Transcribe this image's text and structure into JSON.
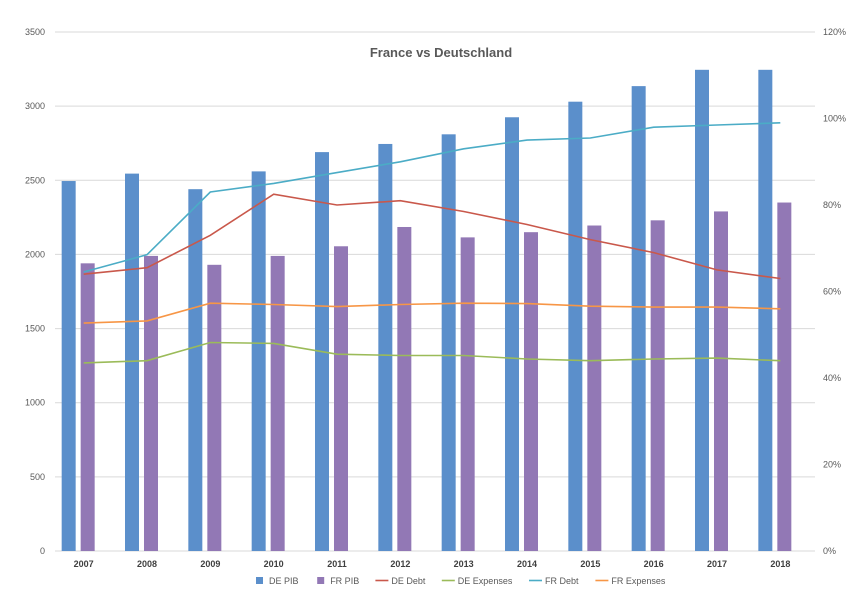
{
  "chart_data": {
    "type": "bar",
    "title": "France vs Deutschland",
    "categories": [
      "2007",
      "2008",
      "2009",
      "2010",
      "2011",
      "2012",
      "2013",
      "2014",
      "2015",
      "2016",
      "2017",
      "2018"
    ],
    "y_left": {
      "ylim": [
        0,
        3500
      ],
      "ticks": [
        "0",
        "500",
        "1000",
        "1500",
        "2000",
        "2500",
        "3000",
        "3500"
      ]
    },
    "y_right": {
      "ylim": [
        0,
        1.2
      ],
      "ticks": [
        "0%",
        "20%",
        "40%",
        "60%",
        "80%",
        "100%",
        "120%"
      ]
    },
    "grid": true,
    "legend_position": "bottom",
    "series": [
      {
        "name": "DE PIB",
        "type": "bar",
        "axis": "left",
        "color": "#5B8FCB",
        "values": [
          2495,
          2545,
          2440,
          2560,
          2690,
          2745,
          2810,
          2925,
          3030,
          3135,
          3245,
          3245
        ]
      },
      {
        "name": "FR PIB",
        "type": "bar",
        "axis": "left",
        "color": "#9278B5",
        "values": [
          1940,
          1990,
          1930,
          1990,
          2055,
          2185,
          2115,
          2150,
          2195,
          2230,
          2290,
          2350
        ]
      },
      {
        "name": "DE Debt",
        "type": "line",
        "axis": "right",
        "color": "#C9584B",
        "values": [
          0.64,
          0.655,
          0.73,
          0.825,
          0.8,
          0.81,
          0.785,
          0.755,
          0.72,
          0.69,
          0.65,
          0.63
        ]
      },
      {
        "name": "DE Expenses",
        "type": "line",
        "axis": "right",
        "color": "#9BBB59",
        "values": [
          0.435,
          0.44,
          0.482,
          0.48,
          0.455,
          0.452,
          0.452,
          0.444,
          0.44,
          0.444,
          0.446,
          0.44
        ]
      },
      {
        "name": "FR Debt",
        "type": "line",
        "axis": "right",
        "color": "#4BACC6",
        "values": [
          0.645,
          0.685,
          0.83,
          0.85,
          0.875,
          0.9,
          0.93,
          0.95,
          0.955,
          0.98,
          0.985,
          0.99
        ]
      },
      {
        "name": "FR Expenses",
        "type": "line",
        "axis": "right",
        "color": "#F79646",
        "values": [
          0.527,
          0.532,
          0.573,
          0.57,
          0.565,
          0.57,
          0.573,
          0.572,
          0.566,
          0.564,
          0.564,
          0.56
        ]
      }
    ]
  }
}
